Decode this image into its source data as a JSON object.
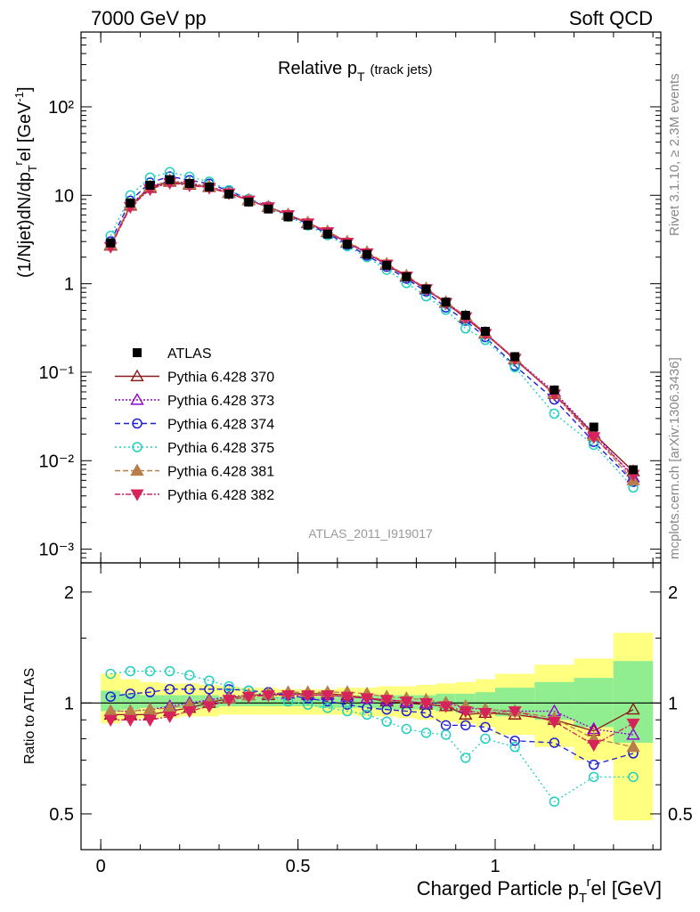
{
  "header": {
    "energy": "7000 GeV pp",
    "process": "Soft QCD",
    "plot_title_main": "Relative p",
    "plot_title_sub": "T",
    "plot_title_extra": "(track jets)",
    "analysis_id": "ATLAS_2011_I919017",
    "rivet_label": "Rivet 3.1.10, ≥ 2.3M events",
    "mcplots_label": "mcplots.cern.ch [arXiv:1306.3436]"
  },
  "axes": {
    "top_ylabel": "(1/Njet)dN/dp",
    "top_ylabel_sub": "T",
    "top_ylabel_sup": "r",
    "top_ylabel_tail": "el [GeV",
    "top_ylabel_unit_sup": "-1",
    "top_ylabel_close": "]",
    "bottom_ylabel": "Ratio to ATLAS",
    "xlabel": "Charged Particle p",
    "xlabel_sub": "T",
    "xlabel_sup": "r",
    "xlabel_tail": "el [GeV]",
    "x_ticks": [
      "0",
      "0.5",
      "1"
    ],
    "top_y_ticks": [
      "10⁻³",
      "10⁻²",
      "10⁻¹",
      "1",
      "10",
      "10²"
    ],
    "ratio_y_ticks": [
      "0.5",
      "1",
      "2"
    ]
  },
  "colors": {
    "atlas": "#000000",
    "p370": "#8b1a1a",
    "p373": "#9400d3",
    "p374": "#1f1fd6",
    "p375": "#20d0c0",
    "p381": "#b87d48",
    "p382": "#d6245a",
    "band_green": "#90ee90",
    "band_yellow": "#ffff80"
  },
  "chart_data": {
    "type": "line",
    "x_scale": "linear",
    "y_scale": "log",
    "xlim": [
      -0.05,
      1.42
    ],
    "ylim": [
      0.0007,
      700
    ],
    "ratio_ylim": [
      0.4,
      2.4
    ],
    "bin_centers": [
      0.025,
      0.075,
      0.125,
      0.175,
      0.225,
      0.275,
      0.325,
      0.375,
      0.425,
      0.475,
      0.525,
      0.575,
      0.625,
      0.675,
      0.725,
      0.775,
      0.825,
      0.875,
      0.925,
      0.975,
      1.05,
      1.15,
      1.25,
      1.35
    ],
    "bin_edges": [
      0,
      0.05,
      0.1,
      0.15,
      0.2,
      0.25,
      0.3,
      0.35,
      0.4,
      0.45,
      0.5,
      0.55,
      0.6,
      0.65,
      0.7,
      0.75,
      0.8,
      0.85,
      0.9,
      0.95,
      1.0,
      1.1,
      1.2,
      1.3,
      1.4
    ],
    "data": {
      "name": "ATLAS",
      "values": [
        2.9,
        8.2,
        13.0,
        15.0,
        13.6,
        12.4,
        10.3,
        8.4,
        7.0,
        5.7,
        4.6,
        3.65,
        2.8,
        2.15,
        1.62,
        1.2,
        0.87,
        0.62,
        0.44,
        0.29,
        0.15,
        0.063,
        0.024,
        0.0079
      ]
    },
    "ratio_band_green": [
      1.08,
      1.06,
      1.05,
      1.05,
      1.05,
      1.05,
      1.04,
      1.04,
      1.04,
      1.04,
      1.04,
      1.04,
      1.04,
      1.05,
      1.05,
      1.05,
      1.05,
      1.06,
      1.06,
      1.07,
      1.1,
      1.14,
      1.17,
      1.3
    ],
    "ratio_band_green_low": [
      0.95,
      0.96,
      0.97,
      0.97,
      0.97,
      0.97,
      0.98,
      0.98,
      0.98,
      0.98,
      0.98,
      0.97,
      0.97,
      0.97,
      0.96,
      0.96,
      0.96,
      0.95,
      0.94,
      0.94,
      0.92,
      0.9,
      0.86,
      0.78
    ],
    "ratio_band_yellow": [
      1.2,
      1.16,
      1.14,
      1.13,
      1.13,
      1.12,
      1.11,
      1.1,
      1.1,
      1.09,
      1.09,
      1.09,
      1.1,
      1.1,
      1.11,
      1.11,
      1.12,
      1.13,
      1.14,
      1.16,
      1.2,
      1.27,
      1.32,
      1.55
    ],
    "ratio_band_yellow_low": [
      0.88,
      0.9,
      0.91,
      0.91,
      0.92,
      0.92,
      0.93,
      0.93,
      0.93,
      0.93,
      0.93,
      0.93,
      0.93,
      0.92,
      0.92,
      0.91,
      0.9,
      0.89,
      0.88,
      0.86,
      0.82,
      0.76,
      0.7,
      0.48
    ],
    "series": [
      {
        "name": "Pythia 6.428 370",
        "color_key": "p370",
        "marker": "triangle-open",
        "dash": "",
        "ratio": [
          0.93,
          0.93,
          0.93,
          0.95,
          0.97,
          1.0,
          1.03,
          1.05,
          1.05,
          1.06,
          1.06,
          1.06,
          1.05,
          1.03,
          1.01,
          1.0,
          0.99,
          0.98,
          0.93,
          0.94,
          0.93,
          0.9,
          0.84,
          0.96
        ]
      },
      {
        "name": "Pythia 6.428 373",
        "color_key": "p373",
        "marker": "triangle-open",
        "dash": "2,2",
        "ratio": [
          0.95,
          0.95,
          0.96,
          0.98,
          1.0,
          1.02,
          1.04,
          1.05,
          1.06,
          1.06,
          1.05,
          1.05,
          1.04,
          1.03,
          1.02,
          1.01,
          1.0,
          1.0,
          0.97,
          0.96,
          0.95,
          0.95,
          0.85,
          0.82
        ]
      },
      {
        "name": "Pythia 6.428 374",
        "color_key": "p374",
        "marker": "circle-open",
        "dash": "6,4",
        "ratio": [
          1.04,
          1.06,
          1.07,
          1.09,
          1.09,
          1.09,
          1.09,
          1.08,
          1.07,
          1.05,
          1.03,
          1.01,
          0.99,
          0.97,
          0.96,
          0.95,
          0.94,
          0.87,
          0.87,
          0.86,
          0.79,
          0.78,
          0.68,
          0.73
        ]
      },
      {
        "name": "Pythia 6.428 375",
        "color_key": "p375",
        "marker": "circle-open",
        "dash": "2,3",
        "ratio": [
          1.2,
          1.22,
          1.22,
          1.22,
          1.19,
          1.15,
          1.11,
          1.08,
          1.05,
          1.01,
          0.99,
          0.97,
          0.95,
          0.93,
          0.89,
          0.85,
          0.83,
          0.82,
          0.71,
          0.8,
          0.76,
          0.54,
          0.63,
          0.63
        ]
      },
      {
        "name": "Pythia 6.428 381",
        "color_key": "p381",
        "marker": "triangle-filled",
        "dash": "6,3",
        "ratio": [
          0.95,
          0.95,
          0.96,
          0.97,
          0.99,
          1.01,
          1.03,
          1.05,
          1.06,
          1.07,
          1.07,
          1.07,
          1.07,
          1.06,
          1.04,
          1.03,
          1.02,
          1.0,
          0.98,
          0.96,
          0.95,
          0.91,
          0.8,
          0.76
        ]
      },
      {
        "name": "Pythia 6.428 382",
        "color_key": "p382",
        "marker": "triangle-down-filled",
        "dash": "6,2,2,2",
        "ratio": [
          0.9,
          0.9,
          0.9,
          0.92,
          0.95,
          0.98,
          1.02,
          1.04,
          1.05,
          1.05,
          1.05,
          1.05,
          1.04,
          1.03,
          1.02,
          1.01,
          1.0,
          0.98,
          0.95,
          0.94,
          0.95,
          0.89,
          0.77,
          0.88
        ]
      }
    ]
  }
}
